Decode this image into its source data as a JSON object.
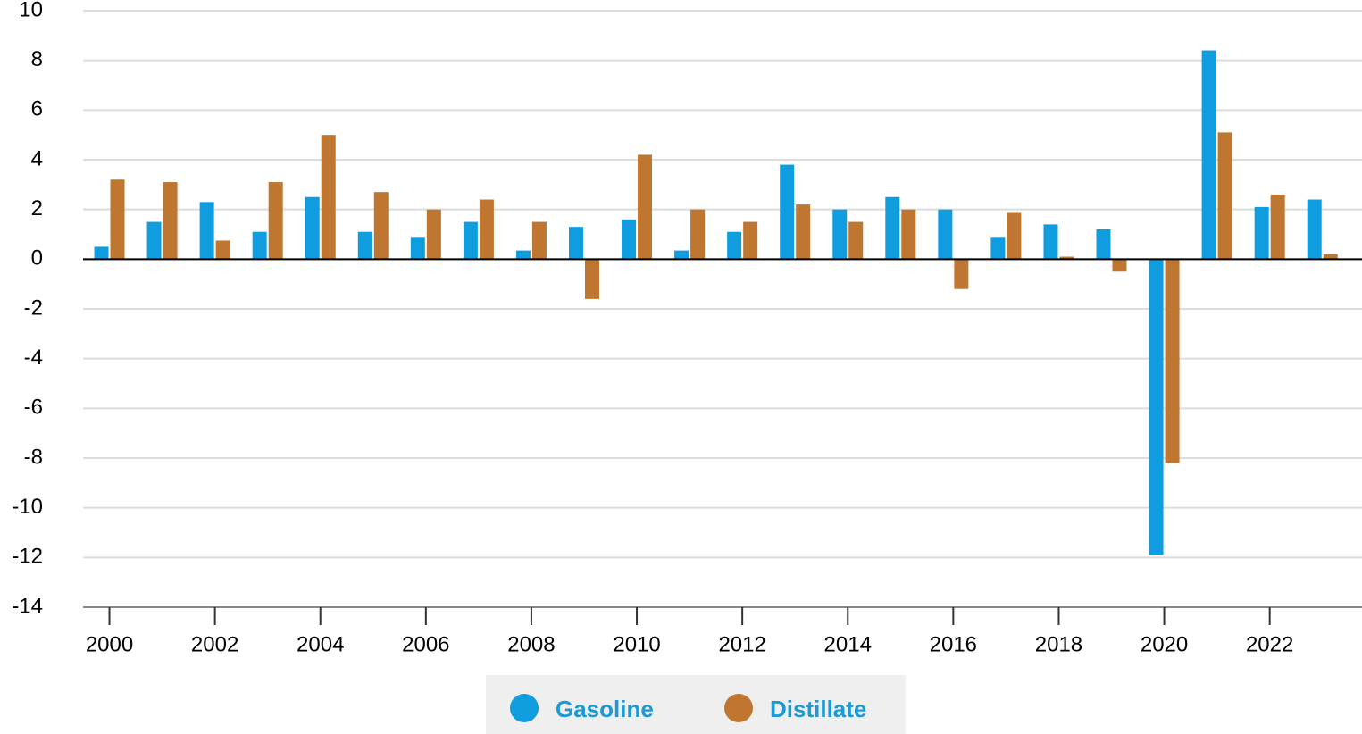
{
  "chart_data": {
    "type": "bar",
    "x": [
      2000,
      2001,
      2002,
      2003,
      2004,
      2005,
      2006,
      2007,
      2008,
      2009,
      2010,
      2011,
      2012,
      2013,
      2014,
      2015,
      2016,
      2017,
      2018,
      2019,
      2020,
      2021,
      2022,
      2023
    ],
    "series": [
      {
        "name": "Gasoline",
        "color": "#0f9ddf",
        "values": [
          0.5,
          1.5,
          2.3,
          1.1,
          2.5,
          1.1,
          0.9,
          1.5,
          0.35,
          1.3,
          1.6,
          0.35,
          1.1,
          3.8,
          2.0,
          2.5,
          2.0,
          0.9,
          1.4,
          1.2,
          -11.9,
          8.4,
          2.1,
          2.4
        ]
      },
      {
        "name": "Distillate",
        "color": "#bf7630",
        "values": [
          3.2,
          3.1,
          0.75,
          3.1,
          5.0,
          2.7,
          2.0,
          2.4,
          1.5,
          -1.6,
          4.2,
          2.0,
          1.5,
          2.2,
          1.5,
          2.0,
          -1.2,
          1.9,
          0.1,
          -0.5,
          -8.2,
          5.1,
          2.6,
          0.2
        ]
      }
    ],
    "xlim": [
      1999.5,
      2023.75
    ],
    "xticks": [
      2000,
      2002,
      2004,
      2006,
      2008,
      2010,
      2012,
      2014,
      2016,
      2018,
      2020,
      2022
    ],
    "ylim": [
      -14,
      10
    ],
    "yticks": [
      -14,
      -12,
      -10,
      -8,
      -6,
      -4,
      -2,
      0,
      2,
      4,
      6,
      8,
      10
    ],
    "grid": true,
    "legend": "bottom"
  }
}
